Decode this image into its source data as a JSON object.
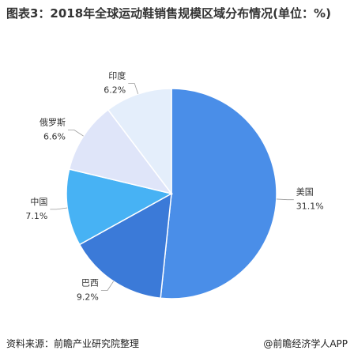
{
  "chart_data": {
    "type": "pie",
    "title": "图表3：2018年全球运动鞋销售规模区域分布情况(单位：%)",
    "categories": [
      "美国",
      "巴西",
      "中国",
      "俄罗斯",
      "印度"
    ],
    "values": [
      31.1,
      9.2,
      7.1,
      6.6,
      6.2
    ],
    "value_labels": [
      "31.1%",
      "9.2%",
      "7.1%",
      "6.6%",
      "6.2%"
    ],
    "colors": [
      "#4a8ee8",
      "#3b7ad8",
      "#47b2f4",
      "#dfe5f9",
      "#e4eefb"
    ],
    "source": "资料来源：前瞻产业研究院整理",
    "credit": "@前瞻经济学人APP"
  }
}
